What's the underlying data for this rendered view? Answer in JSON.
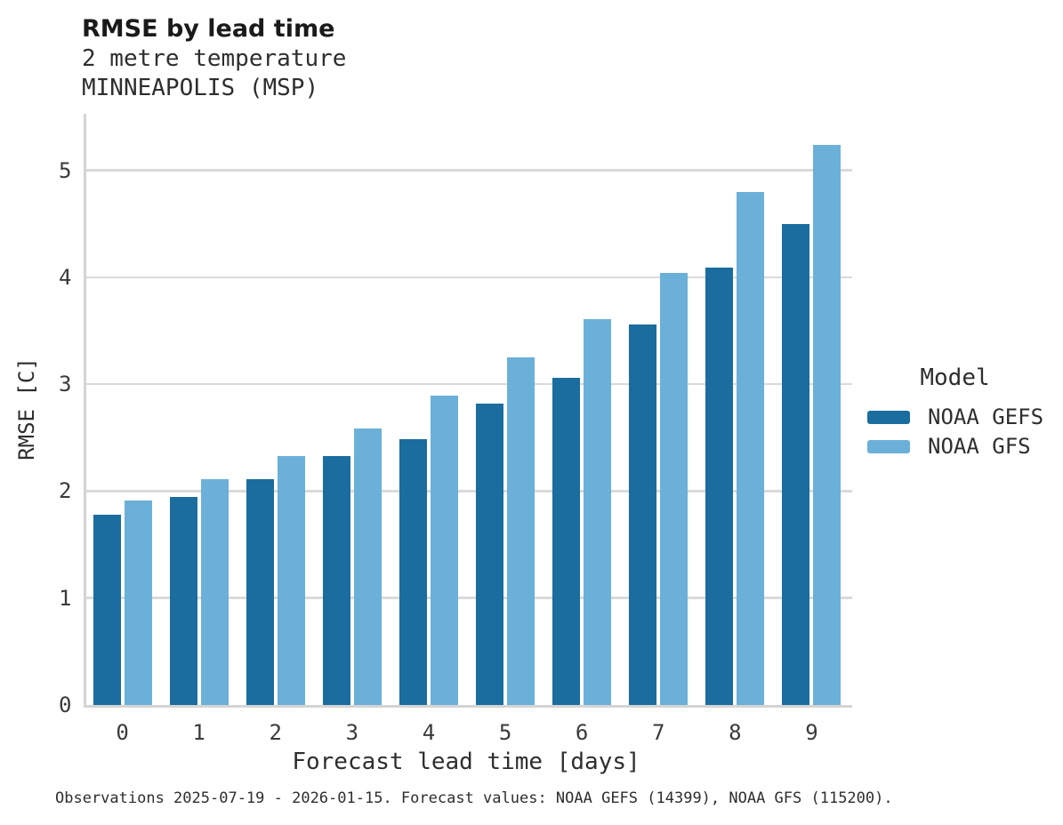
{
  "header": {
    "title": "RMSE by lead time",
    "subtitle_line1": "2 metre temperature",
    "subtitle_line2": "MINNEAPOLIS (MSP)"
  },
  "axes": {
    "xlabel": "Forecast lead time [days]",
    "ylabel": "RMSE [C]"
  },
  "legend": {
    "title": "Model",
    "entries": [
      {
        "label": "NOAA GEFS",
        "color": "#1A6D9E"
      },
      {
        "label": "NOAA GFS",
        "color": "#6BB0D8"
      }
    ]
  },
  "caption": "Observations 2025-07-19 - 2026-01-15. Forecast values: NOAA GEFS (14399), NOAA GFS (115200).",
  "colors": {
    "gefs_dark_blue": "#1A6D9E",
    "gfs_light_blue": "#6BB0D8",
    "gridline_gray": "#DADADA",
    "spine_gray": "#D4D4D4",
    "background": "#FFFFFF"
  },
  "chart_data": {
    "type": "bar",
    "title": "RMSE by lead time",
    "subtitle": "2 metre temperature MINNEAPOLIS (MSP)",
    "xlabel": "Forecast lead time [days]",
    "ylabel": "RMSE [C]",
    "categories": [
      "0",
      "1",
      "2",
      "3",
      "4",
      "5",
      "6",
      "7",
      "8",
      "9"
    ],
    "series": [
      {
        "name": "NOAA GEFS",
        "color": "#1A6D9E",
        "values": [
          1.78,
          1.95,
          2.11,
          2.33,
          2.49,
          2.82,
          3.06,
          3.56,
          4.09,
          4.5
        ]
      },
      {
        "name": "NOAA GFS",
        "color": "#6BB0D8",
        "values": [
          1.91,
          2.11,
          2.33,
          2.59,
          2.89,
          3.25,
          3.61,
          4.04,
          4.8,
          5.24
        ]
      }
    ],
    "ylim": [
      0,
      5.53
    ],
    "yticks": [
      0,
      1,
      2,
      3,
      4,
      5
    ],
    "grid": "horizontal",
    "legend_position": "right",
    "legend_title": "Model"
  }
}
